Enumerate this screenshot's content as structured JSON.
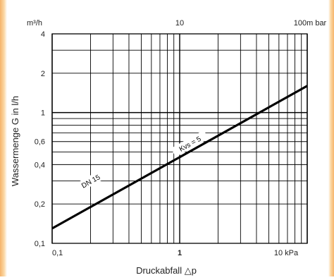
{
  "chart_data": {
    "type": "line",
    "xscale": "log",
    "yscale": "log",
    "xlim": [
      0.1,
      10
    ],
    "ylim": [
      0.1,
      4
    ],
    "xlabel": "Druckabfall △p",
    "ylabel": "Wassermenge G in l/h",
    "x_tick_labels": [
      {
        "value": 0.1,
        "label": "0,1"
      },
      {
        "value": 1,
        "label": "1"
      },
      {
        "value": 10,
        "label": "10 kPa"
      }
    ],
    "y_tick_labels": [
      {
        "value": 0.1,
        "label": "0,1"
      },
      {
        "value": 0.2,
        "label": "0,2"
      },
      {
        "value": 0.4,
        "label": "0,4"
      },
      {
        "value": 0.6,
        "label": "0,6"
      },
      {
        "value": 1,
        "label": "1"
      },
      {
        "value": 2,
        "label": "2"
      },
      {
        "value": 4,
        "label": "4"
      }
    ],
    "top_axis_labels": [
      {
        "value": 1,
        "label": "10"
      },
      {
        "value": 10,
        "label": "100m bar"
      }
    ],
    "y_unit_label": "m³/h",
    "grid": true,
    "series": [
      {
        "x": [
          0.1,
          10
        ],
        "y": [
          0.13,
          1.6
        ]
      }
    ],
    "annotations": [
      {
        "text": "DN 15",
        "x": 0.2,
        "y": 0.3
      },
      {
        "text": "Kvs = 5",
        "x": 1.2,
        "y": 0.58
      }
    ]
  }
}
